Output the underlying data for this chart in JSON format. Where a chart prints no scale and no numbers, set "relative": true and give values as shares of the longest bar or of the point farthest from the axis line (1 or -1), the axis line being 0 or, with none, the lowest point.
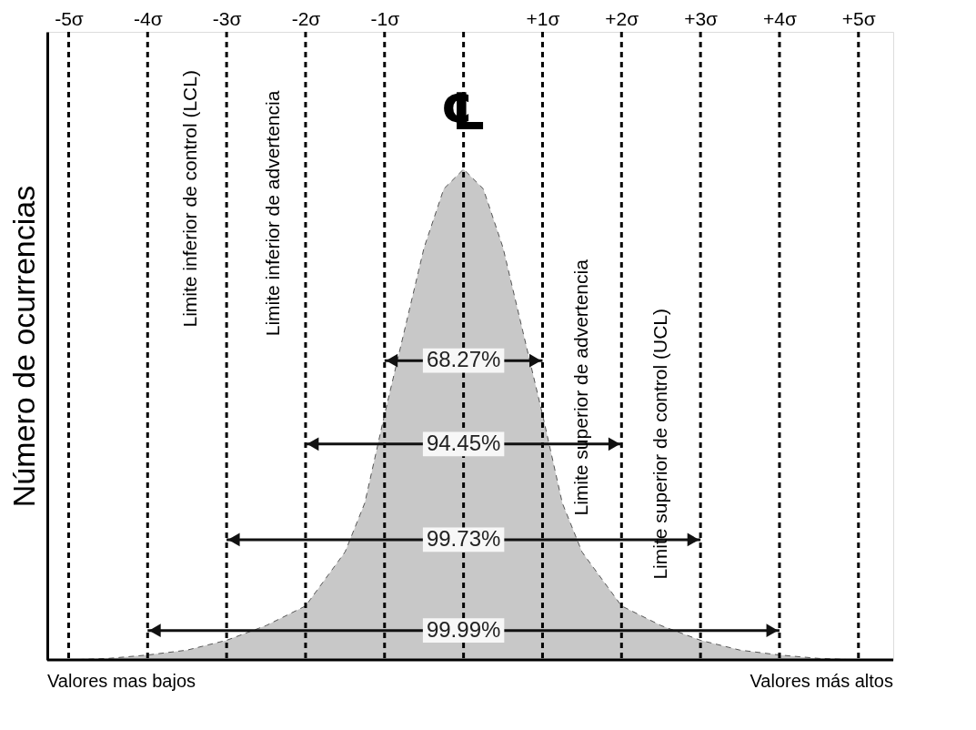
{
  "chart_data": {
    "type": "area",
    "relative": true,
    "ylabel": "Número de ocurrencias",
    "x": [
      -5,
      -4.5,
      -4,
      -3.5,
      -3,
      -2.5,
      -2,
      -1.5,
      -1.25,
      -1,
      -0.75,
      -0.5,
      -0.25,
      0,
      0.25,
      0.5,
      0.75,
      1,
      1.25,
      1.5,
      2,
      2.5,
      3,
      3.5,
      4,
      4.5,
      5
    ],
    "series": [
      {
        "color": "#c8c8c8",
        "values": [
          0,
          0.003,
          0.01,
          0.02,
          0.04,
          0.07,
          0.11,
          0.22,
          0.32,
          0.5,
          0.67,
          0.84,
          0.96,
          1,
          0.96,
          0.84,
          0.67,
          0.5,
          0.32,
          0.22,
          0.11,
          0.07,
          0.04,
          0.02,
          0.01,
          0.003,
          0
        ]
      }
    ],
    "xlim": [
      -5.27,
      5.44
    ],
    "tick_labels": "x",
    "grid": false,
    "line_style": "dashed",
    "xticks": [
      {
        "value": -5,
        "label": "-5σ"
      },
      {
        "value": -4,
        "label": "-4σ"
      },
      {
        "value": -3,
        "label": "-3σ"
      },
      {
        "value": -2,
        "label": "-2σ"
      },
      {
        "value": -1,
        "label": "-1σ"
      },
      {
        "value": 1,
        "label": "+1σ"
      },
      {
        "value": 2,
        "label": "+2σ"
      },
      {
        "value": 3,
        "label": "+3σ"
      },
      {
        "value": 4,
        "label": "+4σ"
      },
      {
        "value": 5,
        "label": "+5σ"
      }
    ],
    "ref_lines": [
      {
        "axis": "x",
        "value": -5,
        "line_style": "dashed"
      },
      {
        "axis": "x",
        "value": -4,
        "line_style": "dashed"
      },
      {
        "axis": "x",
        "value": -3,
        "line_style": "dashed"
      },
      {
        "axis": "x",
        "value": -2,
        "line_style": "dashed"
      },
      {
        "axis": "x",
        "value": -1,
        "line_style": "dashed"
      },
      {
        "axis": "x",
        "value": 0,
        "label": "℄",
        "line_style": "dashed"
      },
      {
        "axis": "x",
        "value": 1,
        "line_style": "dashed"
      },
      {
        "axis": "x",
        "value": 2,
        "line_style": "dashed"
      },
      {
        "axis": "x",
        "value": 3,
        "line_style": "dashed"
      },
      {
        "axis": "x",
        "value": 4,
        "line_style": "dashed"
      },
      {
        "axis": "x",
        "value": 5,
        "line_style": "dashed"
      }
    ],
    "annotations": [
      "68.27%",
      "94.45%",
      "99.73%",
      "99.99%",
      "Limite inferior de control (LCL)",
      "Limite inferior de advertencia",
      "Limite superior de advertencia",
      "Limite superior de control (UCL)",
      "Valores mas bajos",
      "Valores más altos"
    ]
  }
}
